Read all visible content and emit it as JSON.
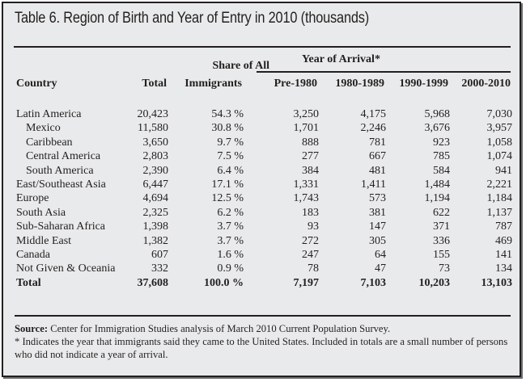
{
  "title": "Table 6. Region of Birth and Year of Entry in 2010 (thousands)",
  "headers": {
    "country": "Country",
    "total": "Total",
    "share_line1": "Share of All",
    "share_line2": "Immigrants",
    "group": "Year of Arrival*",
    "periods": [
      "Pre-1980",
      "1980-1989",
      "1990-1999",
      "2000-2010"
    ]
  },
  "rows": [
    {
      "name": "Latin America",
      "indent": false,
      "bold": false,
      "total": "20,423",
      "share": "54.3 %",
      "p": [
        "3,250",
        "4,175",
        "5,968",
        "7,030"
      ]
    },
    {
      "name": "Mexico",
      "indent": true,
      "bold": false,
      "total": "11,580",
      "share": "30.8 %",
      "p": [
        "1,701",
        "2,246",
        "3,676",
        "3,957"
      ]
    },
    {
      "name": "Caribbean",
      "indent": true,
      "bold": false,
      "total": "3,650",
      "share": "9.7 %",
      "p": [
        "888",
        "781",
        "923",
        "1,058"
      ]
    },
    {
      "name": "Central America",
      "indent": true,
      "bold": false,
      "total": "2,803",
      "share": "7.5 %",
      "p": [
        "277",
        "667",
        "785",
        "1,074"
      ]
    },
    {
      "name": "South America",
      "indent": true,
      "bold": false,
      "total": "2,390",
      "share": "6.4 %",
      "p": [
        "384",
        "481",
        "584",
        "941"
      ]
    },
    {
      "name": "East/Southeast Asia",
      "indent": false,
      "bold": false,
      "total": "6,447",
      "share": "17.1 %",
      "p": [
        "1,331",
        "1,411",
        "1,484",
        "2,221"
      ]
    },
    {
      "name": "Europe",
      "indent": false,
      "bold": false,
      "total": "4,694",
      "share": "12.5 %",
      "p": [
        "1,743",
        "573",
        "1,194",
        "1,184"
      ]
    },
    {
      "name": "South Asia",
      "indent": false,
      "bold": false,
      "total": "2,325",
      "share": "6.2 %",
      "p": [
        "183",
        "381",
        "622",
        "1,137"
      ]
    },
    {
      "name": "Sub-Saharan Africa",
      "indent": false,
      "bold": false,
      "total": "1,398",
      "share": "3.7 %",
      "p": [
        "93",
        "147",
        "371",
        "787"
      ]
    },
    {
      "name": "Middle East",
      "indent": false,
      "bold": false,
      "total": "1,382",
      "share": "3.7 %",
      "p": [
        "272",
        "305",
        "336",
        "469"
      ]
    },
    {
      "name": "Canada",
      "indent": false,
      "bold": false,
      "total": "607",
      "share": "1.6 %",
      "p": [
        "247",
        "64",
        "155",
        "141"
      ]
    },
    {
      "name": "Not Given & Oceania",
      "indent": false,
      "bold": false,
      "total": "332",
      "share": "0.9 %",
      "p": [
        "78",
        "47",
        "73",
        "134"
      ]
    },
    {
      "name": "Total",
      "indent": false,
      "bold": true,
      "total": "37,608",
      "share": "100.0 %",
      "p": [
        "7,197",
        "7,103",
        "10,203",
        "13,103"
      ]
    }
  ],
  "footnotes": {
    "source_label": "Source:",
    "source_text": " Center for Immigration Studies analysis of March 2010 Current Population Survey.",
    "note": "* Indicates the year that immigrants said they came to the United States. Included in totals are a small number of persons who did not indicate a year of arrival."
  }
}
